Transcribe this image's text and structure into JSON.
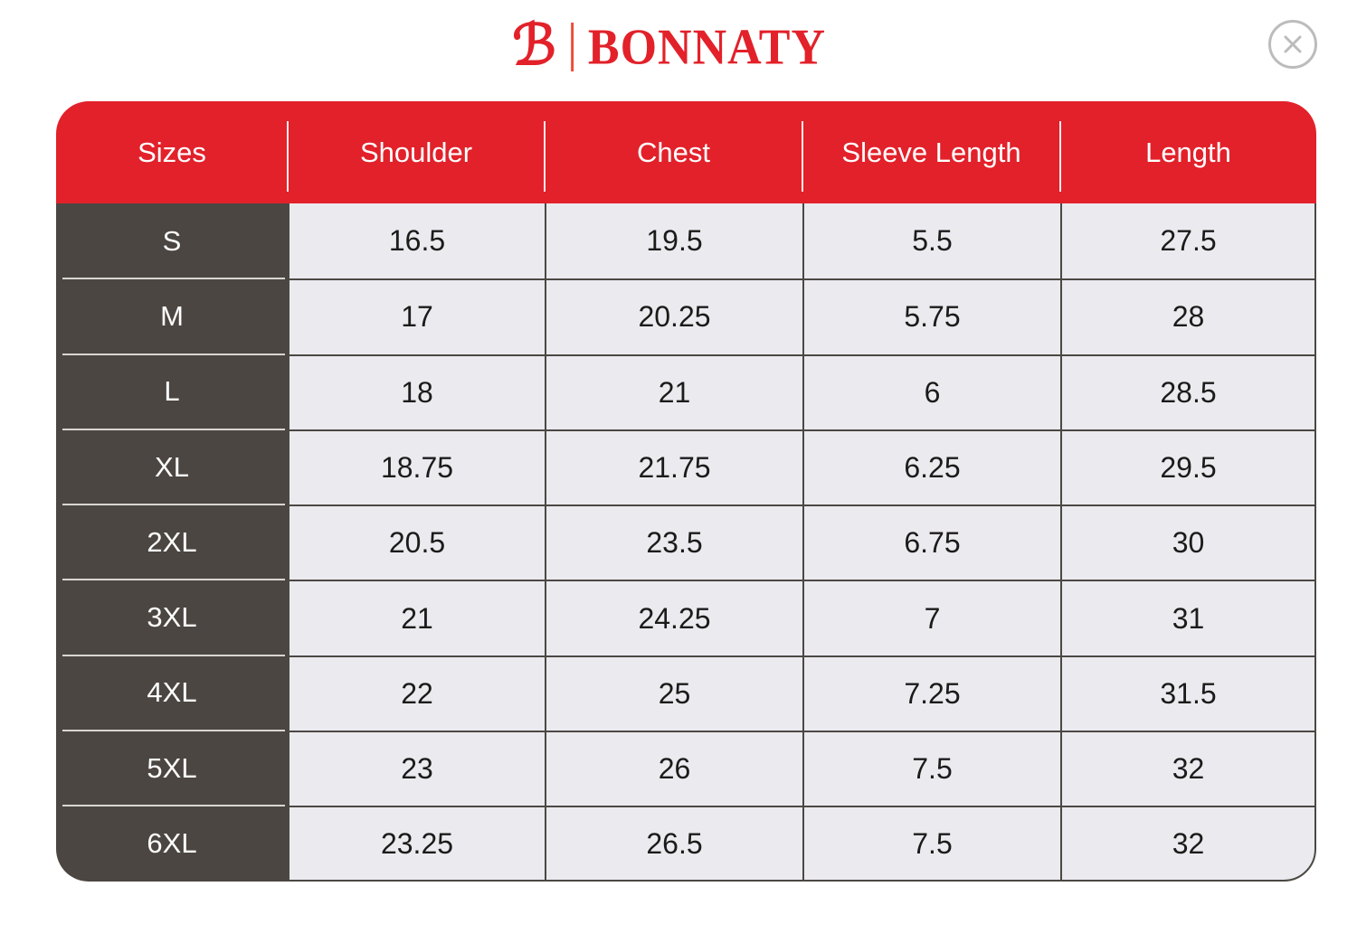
{
  "brand": {
    "name": "BONNATY",
    "monogram": "ℬ"
  },
  "colors": {
    "brand_red": "#e2212a",
    "logo_divider": "#ef4c3b",
    "dark_column_bg": "#4b4641",
    "cell_bg": "#ebeaef",
    "cell_text": "#1c1b1a",
    "grid_line": "#4b4843",
    "size_divider": "#d9d6d1",
    "close_gray": "#bcbcbc"
  },
  "size_chart": {
    "columns": [
      "Sizes",
      "Shoulder",
      "Chest",
      "Sleeve Length",
      "Length"
    ],
    "rows": [
      {
        "size": "S",
        "values": [
          "16.5",
          "19.5",
          "5.5",
          "27.5"
        ]
      },
      {
        "size": "M",
        "values": [
          "17",
          "20.25",
          "5.75",
          "28"
        ]
      },
      {
        "size": "L",
        "values": [
          "18",
          "21",
          "6",
          "28.5"
        ]
      },
      {
        "size": "XL",
        "values": [
          "18.75",
          "21.75",
          "6.25",
          "29.5"
        ]
      },
      {
        "size": "2XL",
        "values": [
          "20.5",
          "23.5",
          "6.75",
          "30"
        ]
      },
      {
        "size": "3XL",
        "values": [
          "21",
          "24.25",
          "7",
          "31"
        ]
      },
      {
        "size": "4XL",
        "values": [
          "22",
          "25",
          "7.25",
          "31.5"
        ]
      },
      {
        "size": "5XL",
        "values": [
          "23",
          "26",
          "7.5",
          "32"
        ]
      },
      {
        "size": "6XL",
        "values": [
          "23.25",
          "26.5",
          "7.5",
          "32"
        ]
      }
    ]
  }
}
